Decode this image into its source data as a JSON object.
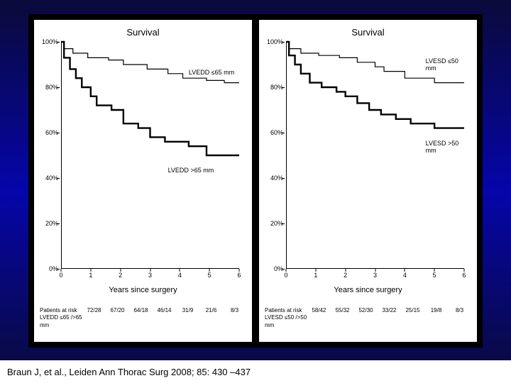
{
  "citation": "Braun J, et al., Leiden  Ann Thorac Surg 2008; 85: 430 –437",
  "panels": [
    {
      "title": "Survival",
      "xlabel": "Years since surgery",
      "y_ticks": [
        0,
        20,
        40,
        60,
        80,
        100
      ],
      "x_ticks": [
        0,
        1,
        2,
        3,
        4,
        5,
        6
      ],
      "ylim": [
        0,
        100
      ],
      "xlim": [
        0,
        6
      ],
      "series": [
        {
          "label": "LVEDD ≤65 mm",
          "label_pos": {
            "x": 4.3,
            "y": 88
          },
          "stroke_width": 1.2,
          "color": "#000000",
          "steps": [
            [
              0,
              100
            ],
            [
              0.1,
              97
            ],
            [
              0.4,
              95
            ],
            [
              0.9,
              93
            ],
            [
              1.6,
              92
            ],
            [
              2.1,
              90
            ],
            [
              2.9,
              88
            ],
            [
              3.6,
              86
            ],
            [
              4.1,
              84
            ],
            [
              4.9,
              83
            ],
            [
              5.5,
              82
            ],
            [
              6,
              82
            ]
          ]
        },
        {
          "label": "LVEDD >65 mm",
          "label_pos": {
            "x": 3.6,
            "y": 45
          },
          "stroke_width": 2.4,
          "color": "#000000",
          "steps": [
            [
              0,
              100
            ],
            [
              0.1,
              93
            ],
            [
              0.3,
              88
            ],
            [
              0.5,
              84
            ],
            [
              0.7,
              80
            ],
            [
              1.0,
              76
            ],
            [
              1.2,
              72
            ],
            [
              1.5,
              72
            ],
            [
              1.7,
              70
            ],
            [
              2.1,
              64
            ],
            [
              2.6,
              62
            ],
            [
              3.0,
              58
            ],
            [
              3.5,
              56
            ],
            [
              4.3,
              54
            ],
            [
              4.9,
              50
            ],
            [
              6,
              50
            ]
          ]
        }
      ],
      "risk_label1": "Patients at risk",
      "risk_label2": "LVEDD ≤65 />65 mm",
      "risk": [
        "72/28",
        "67/20",
        "64/18",
        "46/14",
        "31/9",
        "21/6",
        "8/3"
      ]
    },
    {
      "title": "Survival",
      "xlabel": "Years since surgery",
      "y_ticks": [
        0,
        20,
        40,
        60,
        80,
        100
      ],
      "x_ticks": [
        0,
        1,
        2,
        3,
        4,
        5,
        6
      ],
      "ylim": [
        0,
        100
      ],
      "xlim": [
        0,
        6
      ],
      "series": [
        {
          "label": "LVESD ≤50 mm",
          "label_pos": {
            "x": 4.7,
            "y": 93
          },
          "stroke_width": 1.2,
          "color": "#000000",
          "steps": [
            [
              0,
              100
            ],
            [
              0.1,
              97
            ],
            [
              0.5,
              95
            ],
            [
              1.1,
              94
            ],
            [
              1.8,
              93
            ],
            [
              2.4,
              91
            ],
            [
              3.0,
              89
            ],
            [
              3.3,
              87
            ],
            [
              4.0,
              84
            ],
            [
              5.0,
              82
            ],
            [
              6,
              82
            ]
          ]
        },
        {
          "label": "LVESD >50 mm",
          "label_pos": {
            "x": 4.7,
            "y": 57
          },
          "stroke_width": 2.4,
          "color": "#000000",
          "steps": [
            [
              0,
              100
            ],
            [
              0.1,
              94
            ],
            [
              0.3,
              90
            ],
            [
              0.5,
              86
            ],
            [
              0.8,
              82
            ],
            [
              1.2,
              80
            ],
            [
              1.7,
              78
            ],
            [
              2.0,
              76
            ],
            [
              2.4,
              73
            ],
            [
              2.8,
              70
            ],
            [
              3.2,
              68
            ],
            [
              3.7,
              66
            ],
            [
              4.2,
              64
            ],
            [
              5.0,
              62
            ],
            [
              6,
              62
            ]
          ]
        }
      ],
      "risk_label1": "Patients at risk",
      "risk_label2": "LVESD ≤50 />50 mm",
      "risk": [
        "58/42",
        "55/32",
        "52/30",
        "33/22",
        "25/15",
        "19/8",
        "8/3"
      ]
    }
  ]
}
